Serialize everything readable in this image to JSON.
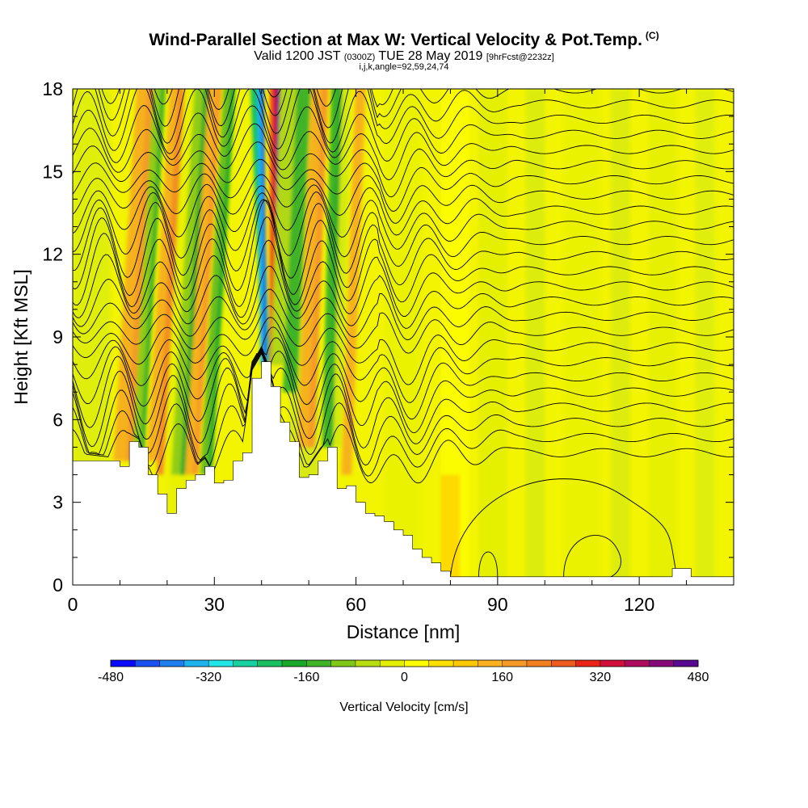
{
  "title": {
    "main": "Wind-Parallel Section at Max W: Vertical Velocity & Pot.Temp.",
    "copyright": "(C)",
    "valid_prefix": "Valid 1200 JST",
    "valid_utc": "(0300Z)",
    "valid_date": "TUE 28 May 2019",
    "forecast": "[9hrFcst@2232z]",
    "indices": "i,j,k,angle=92,59,24,74"
  },
  "chart_data": {
    "type": "heatmap",
    "xlabel": "Distance [nm]",
    "ylabel": "Height [Kft MSL]",
    "xlim": [
      0,
      140
    ],
    "ylim": [
      0,
      18
    ],
    "x_ticks": [
      "0",
      "30",
      "60",
      "90",
      "120"
    ],
    "y_ticks": [
      "0",
      "3",
      "6",
      "9",
      "12",
      "15",
      "18"
    ],
    "colorbar": {
      "label": "Vertical Velocity [cm/s]",
      "ticks": [
        "-480",
        "-320",
        "-160",
        "0",
        "160",
        "320",
        "480"
      ],
      "range": [
        -480,
        480
      ],
      "colors": [
        "#0a0aff",
        "#1a4ff2",
        "#1f7fee",
        "#1fb3ee",
        "#22e5e5",
        "#18d1a0",
        "#18c060",
        "#1aa82a",
        "#40b428",
        "#80c818",
        "#b8dd10",
        "#e3f000",
        "#ffff00",
        "#ffe000",
        "#ffc900",
        "#fcb120",
        "#f59a28",
        "#f28020",
        "#ec5c1e",
        "#ea2418",
        "#d0103a",
        "#ad0c5e",
        "#860a78",
        "#5a0a90"
      ]
    },
    "terrain_kft": [
      [
        0,
        4.5
      ],
      [
        10,
        4.3
      ],
      [
        12,
        5.2
      ],
      [
        14,
        5.0
      ],
      [
        16,
        4.0
      ],
      [
        18,
        3.3
      ],
      [
        20,
        2.6
      ],
      [
        22,
        3.5
      ],
      [
        24,
        3.8
      ],
      [
        26,
        4.0
      ],
      [
        28,
        4.3
      ],
      [
        30,
        3.7
      ],
      [
        32,
        3.8
      ],
      [
        34,
        4.5
      ],
      [
        36,
        4.8
      ],
      [
        38,
        7.5
      ],
      [
        40,
        8.1
      ],
      [
        42,
        7.2
      ],
      [
        44,
        5.9
      ],
      [
        46,
        5.2
      ],
      [
        48,
        3.9
      ],
      [
        50,
        4.0
      ],
      [
        52,
        4.5
      ],
      [
        54,
        5.0
      ],
      [
        56,
        3.5
      ],
      [
        58,
        3.6
      ],
      [
        60,
        3.0
      ],
      [
        62,
        2.6
      ],
      [
        64,
        2.5
      ],
      [
        66,
        2.3
      ],
      [
        68,
        2.0
      ],
      [
        70,
        1.8
      ],
      [
        72,
        1.3
      ],
      [
        74,
        1.0
      ],
      [
        76,
        0.8
      ],
      [
        78,
        0.5
      ],
      [
        80,
        0.3
      ],
      [
        125,
        0.3
      ],
      [
        127,
        0.6
      ],
      [
        130,
        0.6
      ],
      [
        131,
        0.3
      ],
      [
        140,
        0.3
      ]
    ],
    "contour_values": [
      "75",
      "76",
      "77",
      "78",
      "79",
      "80",
      "81",
      "82",
      "83",
      "84",
      "85",
      "86",
      "87",
      "88",
      "89",
      "90",
      "91",
      "92",
      "93",
      "94",
      "95"
    ]
  }
}
